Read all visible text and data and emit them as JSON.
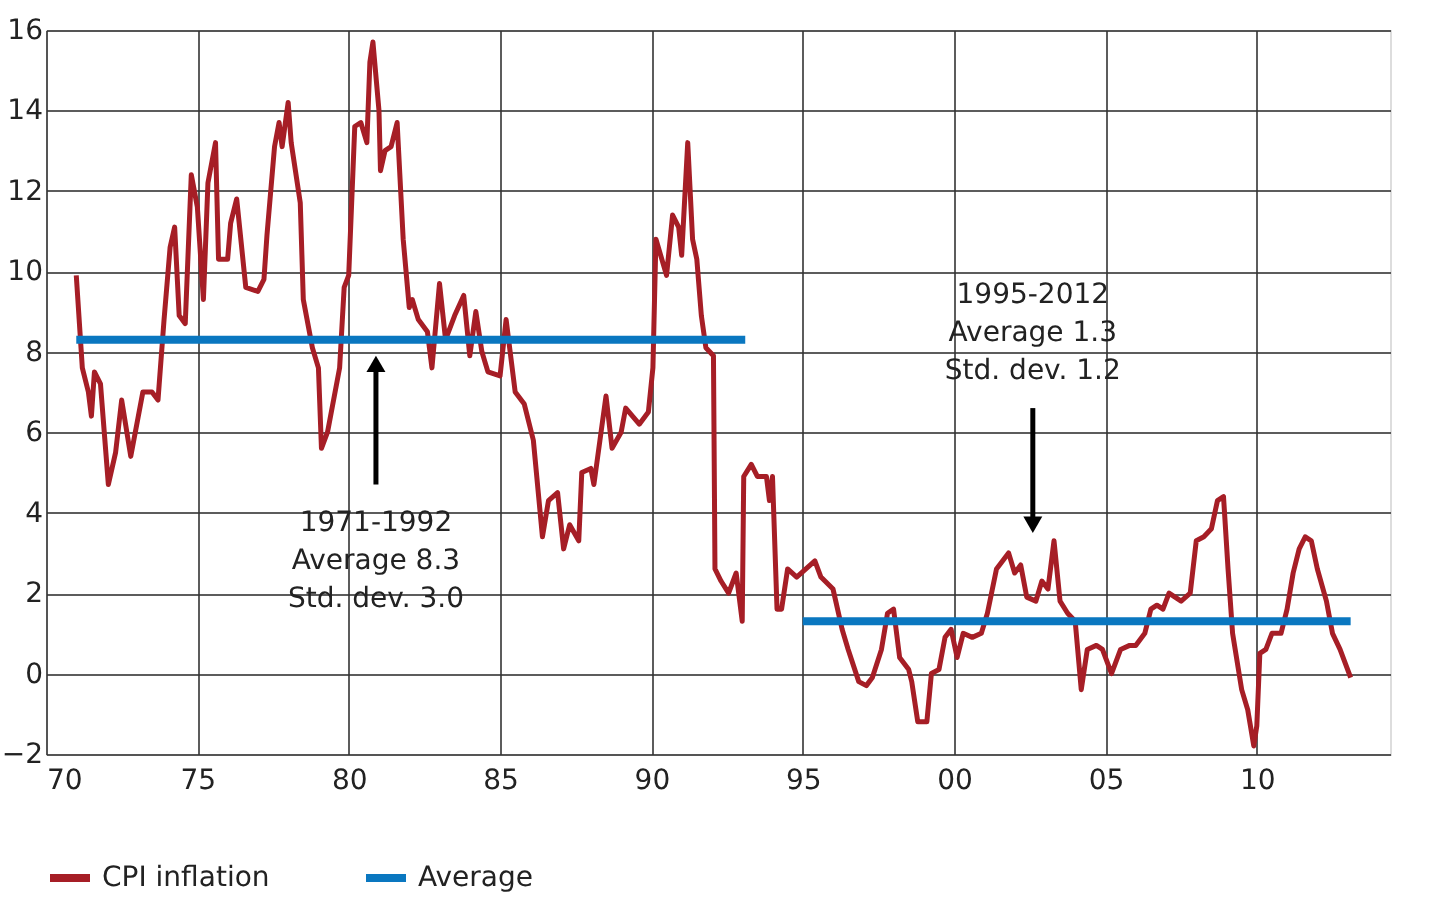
{
  "chart_data": {
    "type": "line",
    "x": [
      1971.0,
      1971.2,
      1971.4,
      1971.5,
      1971.6,
      1971.8,
      1972.06,
      1972.3,
      1972.5,
      1972.8,
      1973.2,
      1973.5,
      1973.7,
      1973.9,
      1974.1,
      1974.25,
      1974.4,
      1974.6,
      1974.8,
      1975.0,
      1975.2,
      1975.35,
      1975.6,
      1975.7,
      1976.0,
      1976.1,
      1976.3,
      1976.6,
      1977.0,
      1977.2,
      1977.3,
      1977.55,
      1977.7,
      1977.8,
      1978.0,
      1978.1,
      1978.4,
      1978.5,
      1978.8,
      1979.0,
      1979.1,
      1979.3,
      1979.7,
      1979.85,
      1980.0,
      1980.2,
      1980.4,
      1980.6,
      1980.7,
      1980.8,
      1981.0,
      1981.05,
      1981.2,
      1981.4,
      1981.6,
      1981.8,
      1982.0,
      1982.1,
      1982.3,
      1982.6,
      1982.75,
      1983.0,
      1983.2,
      1983.5,
      1983.8,
      1984.0,
      1984.2,
      1984.4,
      1984.6,
      1985.0,
      1985.2,
      1985.3,
      1985.5,
      1985.8,
      1986.1,
      1986.4,
      1986.6,
      1986.9,
      1987.1,
      1987.3,
      1987.6,
      1987.7,
      1988.0,
      1988.1,
      1988.3,
      1988.5,
      1988.7,
      1989.0,
      1989.15,
      1989.6,
      1989.9,
      1990.05,
      1990.15,
      1990.5,
      1990.7,
      1990.9,
      1991.0,
      1991.2,
      1991.36,
      1991.5,
      1991.65,
      1991.8,
      1992.05,
      1992.1,
      1992.3,
      1992.55,
      1992.8,
      1993.0,
      1993.05,
      1993.3,
      1993.5,
      1993.8,
      1993.9,
      1994.0,
      1994.15,
      1994.3,
      1994.5,
      1994.8,
      1995.4,
      1995.6,
      1996.0,
      1996.3,
      1996.5,
      1996.85,
      1997.1,
      1997.3,
      1997.6,
      1997.8,
      1998.0,
      1998.2,
      1998.5,
      1998.6,
      1998.8,
      1999.1,
      1999.25,
      1999.5,
      1999.7,
      1999.9,
      2000.1,
      2000.3,
      2000.6,
      2000.9,
      2001.1,
      2001.4,
      2001.6,
      2001.8,
      2002.0,
      2002.2,
      2002.4,
      2002.7,
      2002.9,
      2003.1,
      2003.3,
      2003.5,
      2003.75,
      2004.0,
      2004.2,
      2004.4,
      2004.7,
      2004.9,
      2005.2,
      2005.5,
      2005.8,
      2006.0,
      2006.3,
      2006.5,
      2006.7,
      2006.9,
      2007.1,
      2007.5,
      2007.8,
      2008.0,
      2008.25,
      2008.5,
      2008.7,
      2008.9,
      2009.05,
      2009.2,
      2009.5,
      2009.7,
      2009.9,
      2010.0,
      2010.1,
      2010.3,
      2010.5,
      2010.8,
      2011.0,
      2011.2,
      2011.4,
      2011.6,
      2011.8,
      2012.0,
      2012.3,
      2012.5,
      2012.75,
      2013.1
    ],
    "series": [
      {
        "name": "CPI inflation",
        "color": "#a61e26",
        "values": [
          9.9,
          7.6,
          7.0,
          6.4,
          7.5,
          7.2,
          4.7,
          5.5,
          6.8,
          5.4,
          7.0,
          7.0,
          6.8,
          8.8,
          10.6,
          11.1,
          8.9,
          8.7,
          12.4,
          11.6,
          9.3,
          12.2,
          13.2,
          10.3,
          10.3,
          11.2,
          11.8,
          9.6,
          9.5,
          9.8,
          10.9,
          13.1,
          13.7,
          13.1,
          14.2,
          13.2,
          11.7,
          9.3,
          8.1,
          7.6,
          5.6,
          6.0,
          7.6,
          9.6,
          9.9,
          13.6,
          13.7,
          13.2,
          15.2,
          15.7,
          14.0,
          12.5,
          13.0,
          13.1,
          13.7,
          10.8,
          9.1,
          9.3,
          8.8,
          8.5,
          7.6,
          9.7,
          8.3,
          8.9,
          9.4,
          7.9,
          9.0,
          8.0,
          7.5,
          7.4,
          8.8,
          8.2,
          7.0,
          6.7,
          5.8,
          3.4,
          4.3,
          4.5,
          3.1,
          3.7,
          3.3,
          5.0,
          5.1,
          4.7,
          5.8,
          6.9,
          5.6,
          6.0,
          6.6,
          6.2,
          6.5,
          7.6,
          10.8,
          9.9,
          11.4,
          11.1,
          10.4,
          13.2,
          10.8,
          10.3,
          8.9,
          8.1,
          7.9,
          2.6,
          2.3,
          2.0,
          2.5,
          1.3,
          4.9,
          5.2,
          4.9,
          4.9,
          4.3,
          4.9,
          1.6,
          1.6,
          2.6,
          2.4,
          2.8,
          2.4,
          2.1,
          1.1,
          0.6,
          -0.2,
          -0.3,
          -0.1,
          0.6,
          1.5,
          1.6,
          0.4,
          0.1,
          -0.2,
          -1.2,
          -1.2,
          0.0,
          0.1,
          0.9,
          1.1,
          0.4,
          1.0,
          0.9,
          1.0,
          1.5,
          2.6,
          2.8,
          3.0,
          2.5,
          2.7,
          1.9,
          1.8,
          2.3,
          2.1,
          3.3,
          1.8,
          1.5,
          1.3,
          -0.4,
          0.6,
          0.7,
          0.6,
          0.0,
          0.6,
          0.7,
          0.7,
          1.0,
          1.6,
          1.7,
          1.6,
          2.0,
          1.8,
          2.0,
          3.3,
          3.4,
          3.6,
          4.3,
          4.4,
          2.6,
          1.0,
          -0.4,
          -0.9,
          -1.8,
          -1.3,
          0.5,
          0.6,
          1.0,
          1.0,
          1.6,
          2.5,
          3.1,
          3.4,
          3.3,
          2.6,
          1.8,
          1.0,
          0.6,
          -0.1
        ]
      },
      {
        "name": "Average",
        "color": "#0a77c0",
        "x": [
          1971.0,
          1993.1,
          1994.0,
          1995.0,
          2013.1
        ],
        "values": [
          8.3,
          8.3,
          null,
          1.3,
          1.3
        ]
      }
    ],
    "xlim": [
      1970,
      2014.4
    ],
    "xticks": [
      {
        "value": 1970,
        "label": "70"
      },
      {
        "value": 1975,
        "label": "75"
      },
      {
        "value": 1980,
        "label": "80"
      },
      {
        "value": 1985,
        "label": "85"
      },
      {
        "value": 1990,
        "label": "90"
      },
      {
        "value": 1995,
        "label": "95"
      },
      {
        "value": 2000,
        "label": "00"
      },
      {
        "value": 2005,
        "label": "05"
      },
      {
        "value": 2010,
        "label": "10"
      }
    ],
    "ylim": [
      -2,
      16
    ],
    "yticks": [
      -2,
      0,
      2,
      4,
      6,
      8,
      10,
      12,
      14,
      16
    ],
    "grid": true,
    "legend": "bottom",
    "line_style": "solid",
    "annotations": [
      {
        "text": "1971-1992\nAverage 8.3\nStd. dev. 3.0",
        "x": 1980.9,
        "y": 7.7
      },
      {
        "text": "1995-2012\nAverage 1.3\nStd. dev. 1.2",
        "x": 2002.6,
        "y": 3.7
      }
    ]
  }
}
